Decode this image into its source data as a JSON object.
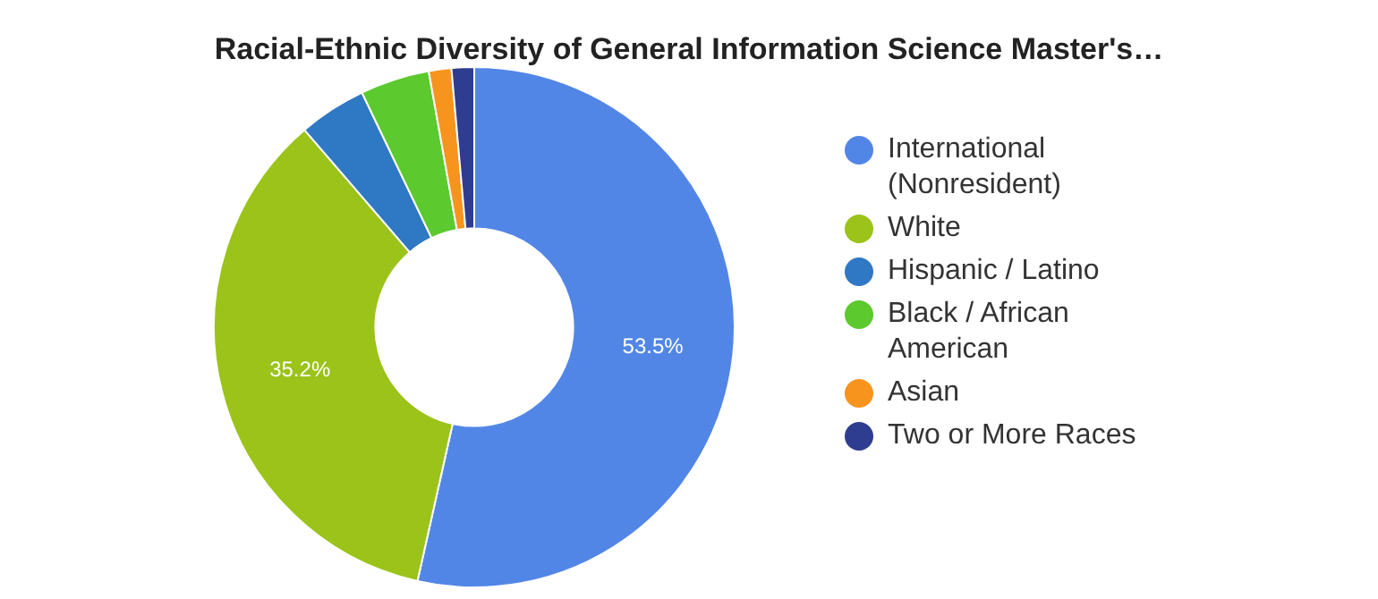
{
  "chart_data": {
    "type": "donut",
    "title": "Racial-Ethnic Diversity of General Information Science Master's…",
    "categories": [
      "International (Nonresident)",
      "White",
      "Hispanic / Latino",
      "Black / African American",
      "Asian",
      "Two or More Races"
    ],
    "values": [
      53.5,
      35.2,
      4.2,
      4.3,
      1.4,
      1.4
    ],
    "colors": [
      "#5286e6",
      "#9bc31a",
      "#2f78c4",
      "#5cc92e",
      "#f7941d",
      "#2e3d8f"
    ],
    "value_labels": [
      "53.5%",
      "35.2%",
      null,
      null,
      null,
      null
    ],
    "legend": "right"
  }
}
